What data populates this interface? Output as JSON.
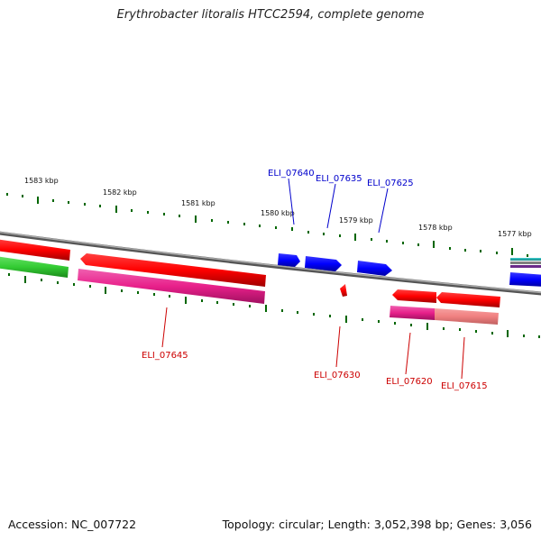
{
  "title": "Erythrobacter litoralis HTCC2594, complete genome",
  "footer": {
    "accession": "Accession: NC_007722",
    "summary": "Topology: circular; Length: 3,052,398 bp; Genes: 3,056"
  },
  "ticks": {
    "labels": [
      "1583 kbp",
      "1582 kbp",
      "1581 kbp",
      "1580 kbp",
      "1579 kbp",
      "1578 kbp",
      "1577 kbp"
    ]
  },
  "genes": {
    "forward_strand_labels": [
      "ELI_07640",
      "ELI_07635",
      "ELI_07625"
    ],
    "reverse_strand_labels": [
      "ELI_07645",
      "ELI_07630",
      "ELI_07620",
      "ELI_07615"
    ]
  },
  "colors": {
    "forward_gene": "#0000ff",
    "reverse_gene": "#ff0000",
    "backbone": "#808080",
    "tick": "#006600",
    "cds_magenta": "#e8208a",
    "cds_pink": "#f08080",
    "cds_green": "#33cc33"
  }
}
